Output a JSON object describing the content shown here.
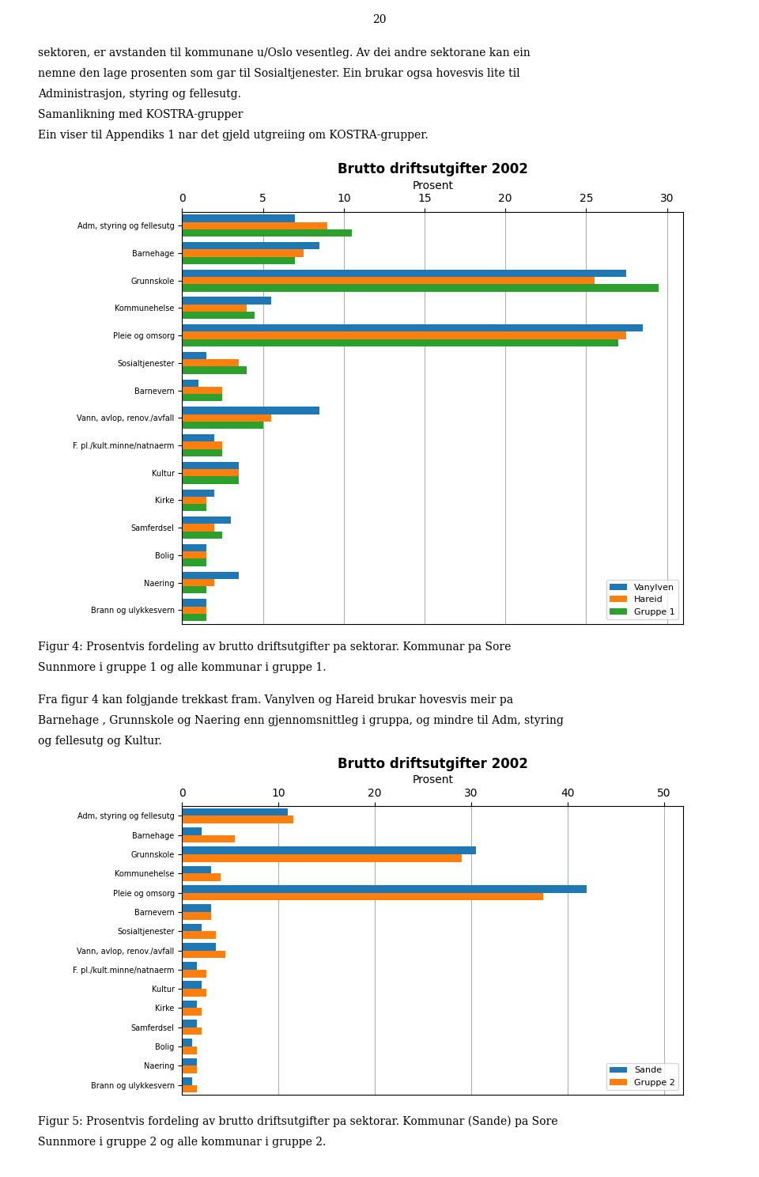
{
  "page_number": "20",
  "chart_data": [
    {
      "type": "bar",
      "orientation": "horizontal",
      "grid": true,
      "legend": "lower right",
      "annotations": [
        "sektoren, er avstanden til kommunane u/Oslo vesentleg. Av dei andre sektorane kan ein",
        "nemne den lage prosenten som gar til Sosialtjenester. Ein brukar ogsa hovesvis lite til",
        "Administrasjon, styring og fellesutg.",
        "Samanlikning med KOSTRA-grupper",
        "Ein viser til Appendiks 1 nar det gjeld utgreiing om KOSTRA-grupper."
      ],
      "title": "Brutto driftsutgifter 2002",
      "x_label": "Prosent",
      "xlim": [
        0,
        31
      ],
      "xticks": [
        0,
        5,
        10,
        15,
        20,
        25,
        30
      ],
      "categories": [
        "Adm, styring og fellesutg",
        "Barnehage",
        "Grunnskole",
        "Kommunehelse",
        "Pleie og omsorg",
        "Sosialtjenester",
        "Barnevern",
        "Vann, avlop, renov./avfall",
        "F. pl./kult.minne/natnaerm",
        "Kultur",
        "Kirke",
        "Samferdsel",
        "Bolig",
        "Naering",
        "Brann og ulykkesvern"
      ],
      "series": [
        {
          "name": "Vanylven",
          "color": "#1f77b4",
          "values": [
            7.0,
            8.5,
            27.5,
            5.5,
            28.5,
            1.5,
            1.0,
            8.5,
            2.0,
            3.5,
            2.0,
            3.0,
            1.5,
            3.5,
            1.5
          ]
        },
        {
          "name": "Hareid",
          "color": "#ff7f0e",
          "values": [
            9.0,
            7.5,
            25.5,
            4.0,
            27.5,
            3.5,
            2.5,
            5.5,
            2.5,
            3.5,
            1.5,
            2.0,
            1.5,
            2.0,
            1.5
          ]
        },
        {
          "name": "Gruppe 1",
          "color": "#2ca02c",
          "values": [
            10.5,
            7.0,
            29.5,
            4.5,
            27.0,
            4.0,
            2.5,
            5.0,
            2.5,
            3.5,
            1.5,
            2.5,
            1.5,
            1.5,
            1.5
          ]
        }
      ],
      "caption": [
        "Figur 4: Prosentvis fordeling av brutto driftsutgifter pa sektorar. Kommunar pa Sore",
        "Sunnmore i gruppe 1 og alle kommunar i gruppe 1."
      ]
    },
    {
      "type": "bar",
      "orientation": "horizontal",
      "grid": true,
      "legend": "lower right",
      "annotations": [
        "Fra figur 4 kan folgjande trekkast fram. Vanylven og Hareid brukar hovesvis meir pa",
        "Barnehage , Grunnskole og Naering enn gjennomsnittleg i gruppa, og mindre til Adm, styring",
        "og fellesutg og Kultur."
      ],
      "title": "Brutto driftsutgifter 2002",
      "x_label": "Prosent",
      "xlim": [
        0,
        52
      ],
      "xticks": [
        0,
        10,
        20,
        30,
        40,
        50
      ],
      "categories": [
        "Adm, styring og fellesutg",
        "Barnehage",
        "Grunnskole",
        "Kommunehelse",
        "Pleie og omsorg",
        "Barnevern",
        "Sosialtjenester",
        "Vann, avlop, renov./avfall",
        "F. pl./kult.minne/natnaerm",
        "Kultur",
        "Kirke",
        "Samferdsel",
        "Bolig",
        "Naering",
        "Brann og ulykkesvern"
      ],
      "series": [
        {
          "name": "Sande",
          "color": "#1f77b4",
          "values": [
            11.0,
            2.0,
            30.5,
            3.0,
            42.0,
            3.0,
            2.0,
            3.5,
            1.5,
            2.0,
            1.5,
            1.5,
            1.0,
            1.5,
            1.0
          ]
        },
        {
          "name": "Gruppe 2",
          "color": "#ff7f0e",
          "values": [
            11.5,
            5.5,
            29.0,
            4.0,
            37.5,
            3.0,
            3.5,
            4.5,
            2.5,
            2.5,
            2.0,
            2.0,
            1.5,
            1.5,
            1.5
          ]
        }
      ],
      "caption": [
        "Figur 5: Prosentvis fordeling av brutto driftsutgifter pa sektorar. Kommunar (Sande) pa Sore",
        "Sunnmore i gruppe 2 og alle kommunar i gruppe 2."
      ]
    }
  ]
}
